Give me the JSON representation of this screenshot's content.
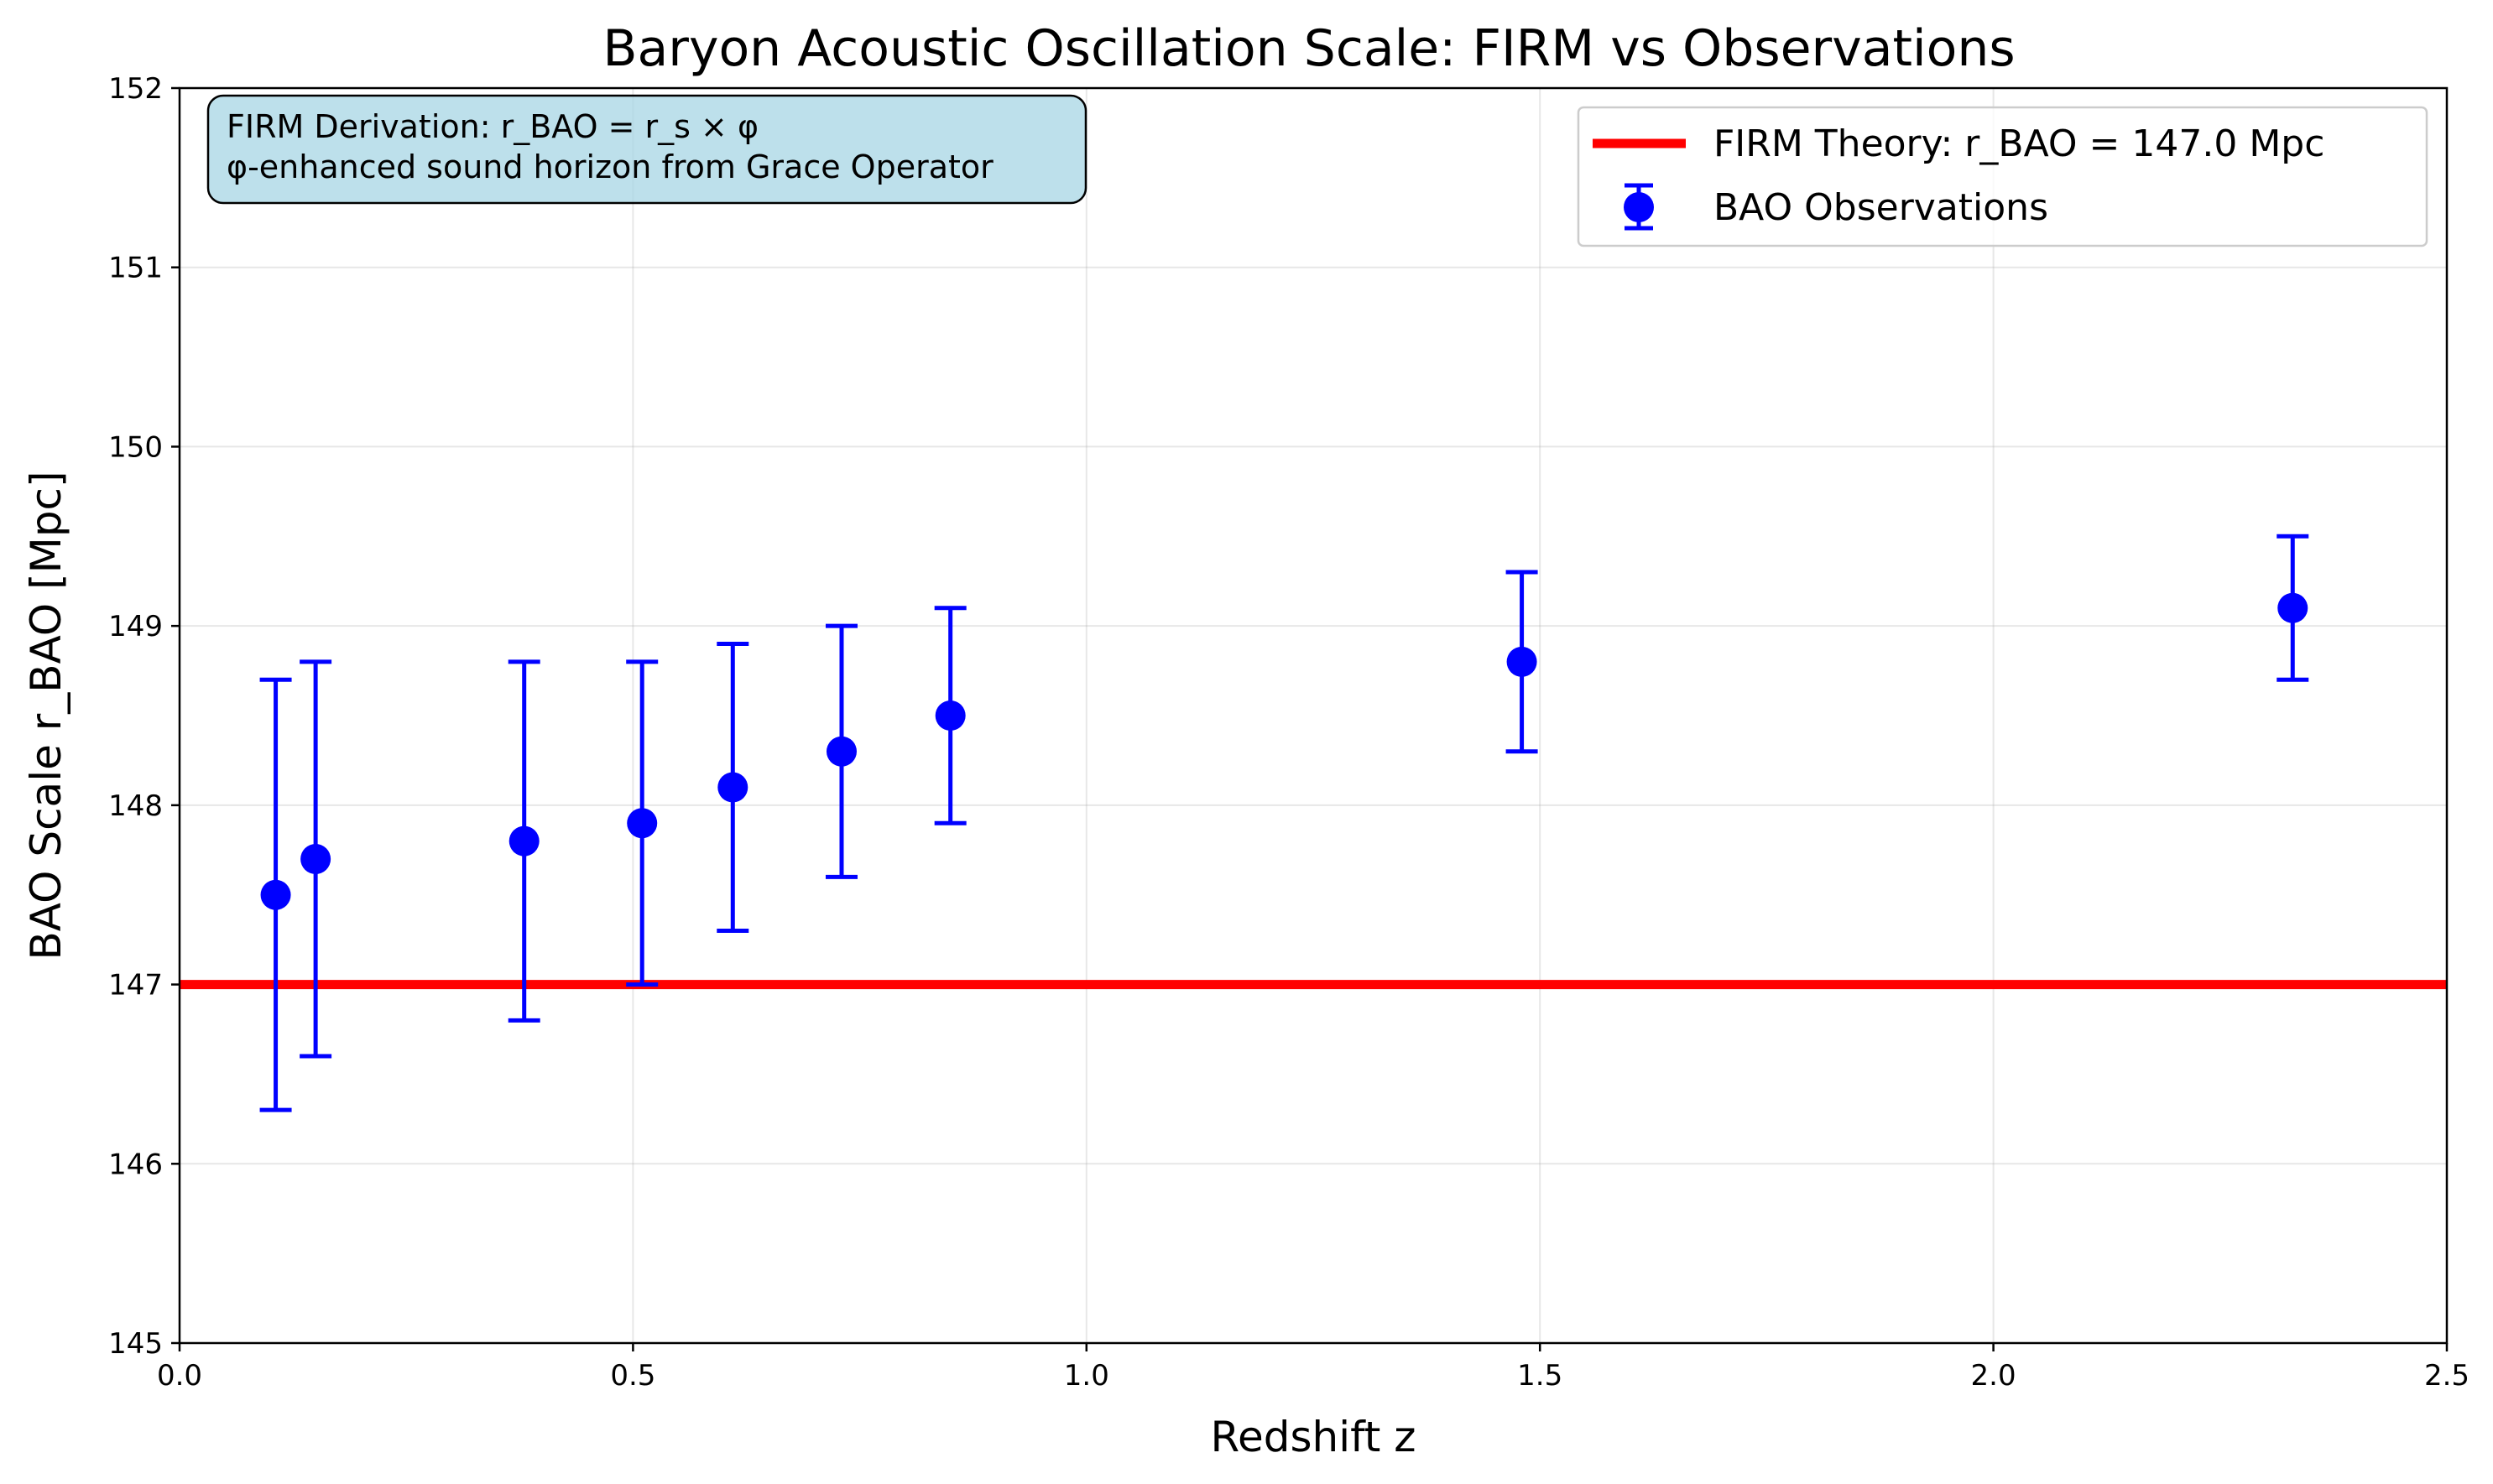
{
  "chart_data": {
    "type": "scatter",
    "title": "Baryon Acoustic Oscillation Scale: FIRM vs Observations",
    "xlabel": "Redshift z",
    "ylabel": "BAO Scale r_BAO [Mpc]",
    "xlim": [
      0.0,
      2.5
    ],
    "ylim": [
      145,
      152
    ],
    "xticks": [
      0.0,
      0.5,
      1.0,
      1.5,
      2.0,
      2.5
    ],
    "xtick_labels": [
      "0.0",
      "0.5",
      "1.0",
      "1.5",
      "2.0",
      "2.5"
    ],
    "yticks": [
      145,
      146,
      147,
      148,
      149,
      150,
      151,
      152
    ],
    "ytick_labels": [
      "145",
      "146",
      "147",
      "148",
      "149",
      "150",
      "151",
      "152"
    ],
    "grid": true,
    "legend_position": "upper right",
    "series": [
      {
        "name": "FIRM Theory: r_BAO = 147.0 Mpc",
        "kind": "hline",
        "y": 147.0,
        "color": "#ff0000"
      },
      {
        "name": "BAO Observations",
        "kind": "errorbar",
        "color": "#0000ff",
        "x": [
          0.106,
          0.15,
          0.38,
          0.51,
          0.61,
          0.73,
          0.85,
          1.48,
          2.33
        ],
        "y": [
          147.5,
          147.7,
          147.8,
          147.9,
          148.1,
          148.3,
          148.5,
          148.8,
          149.1
        ],
        "yerr": [
          1.2,
          1.1,
          1.0,
          0.9,
          0.8,
          0.7,
          0.6,
          0.5,
          0.4
        ]
      }
    ],
    "annotation": {
      "lines": [
        "FIRM Derivation: r_BAO = r_s × φ",
        "φ-enhanced sound horizon from Grace Operator"
      ],
      "position": "top-left",
      "box_color": "#add8e6"
    }
  }
}
